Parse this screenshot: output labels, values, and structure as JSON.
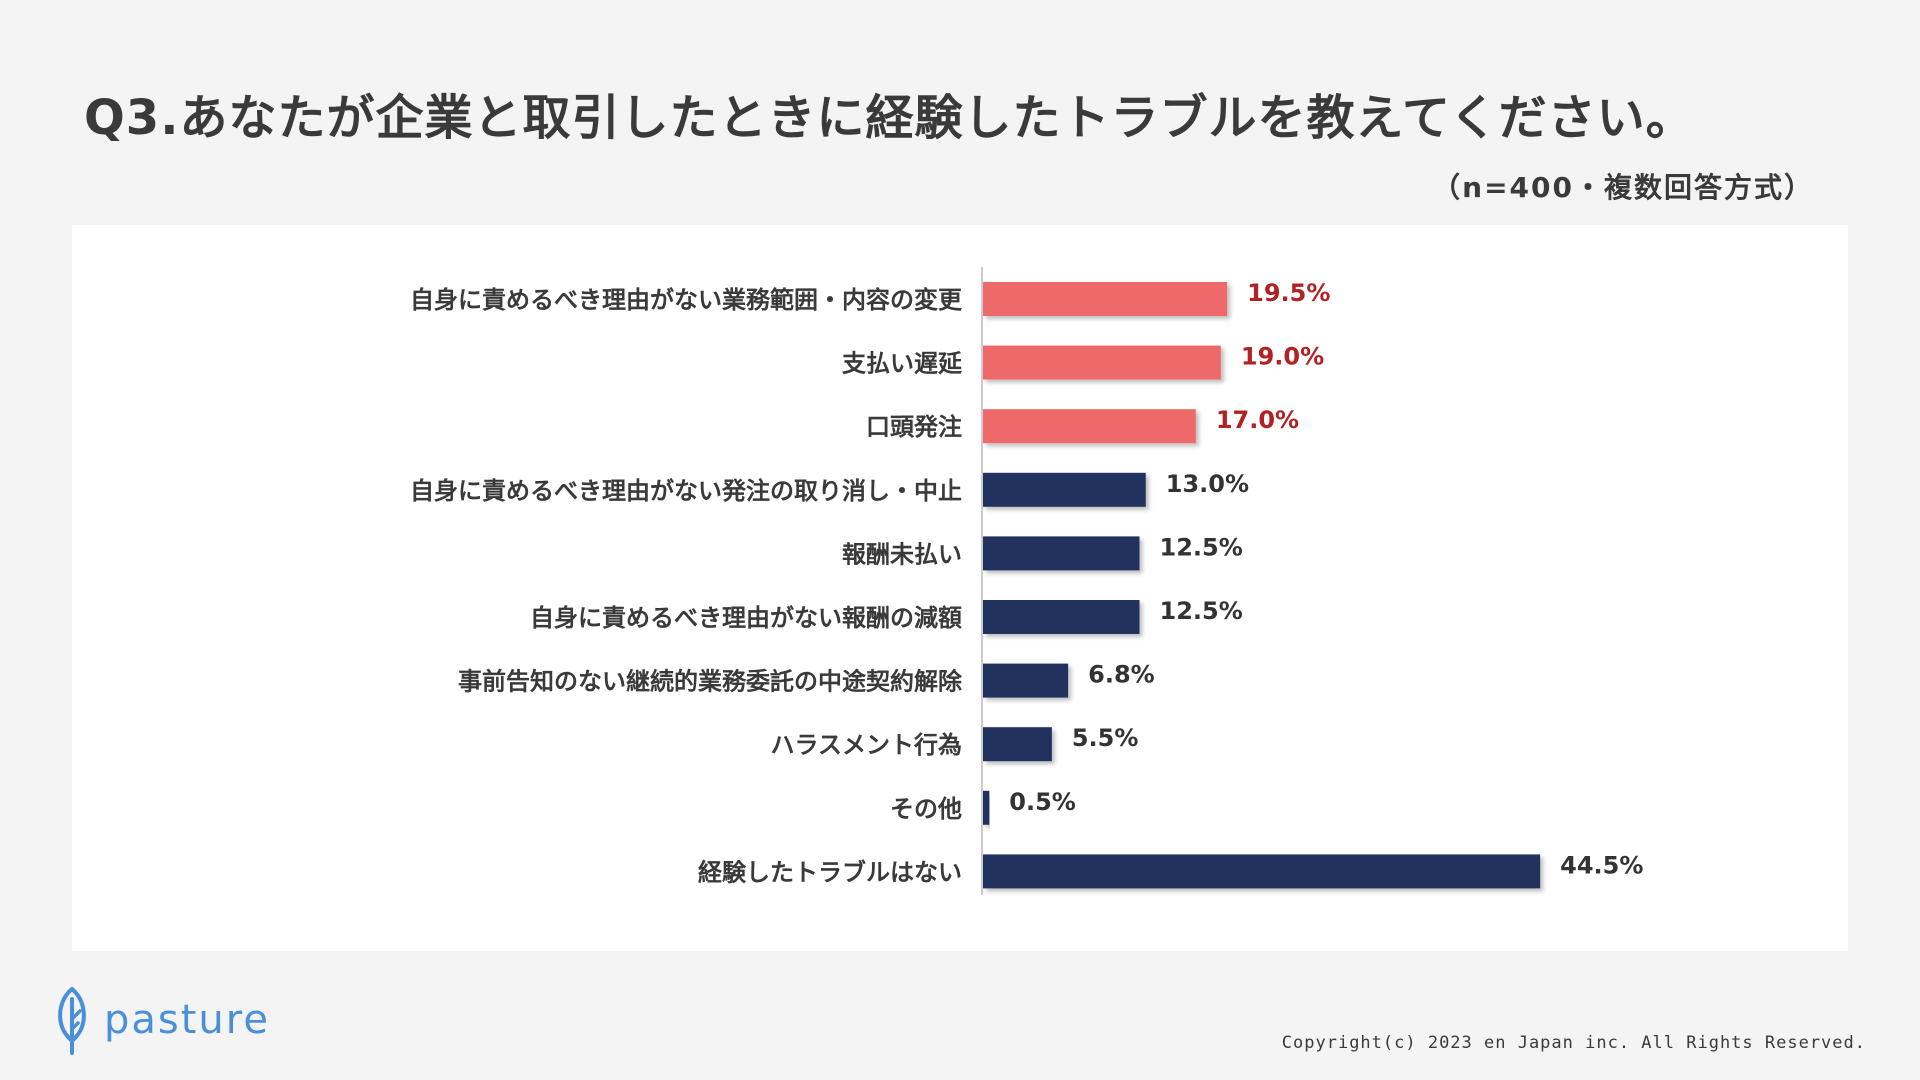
{
  "header": {
    "title": "Q3.あなたが企業と取引したときに経験したトラブルを教えてください。",
    "subtitle": "（n=400・複数回答方式）"
  },
  "colors": {
    "highlight_bar": "#ee6b6b",
    "highlight_text": "#b22222",
    "normal_bar": "#24335e",
    "normal_text": "#333333",
    "brand": "#4a90d9"
  },
  "chart_data": {
    "type": "bar",
    "orientation": "horizontal",
    "categories": [
      "自身に責めるべき理由がない業務範囲・内容の変更",
      "支払い遅延",
      "口頭発注",
      "自身に責めるべき理由がない発注の取り消し・中止",
      "報酬未払い",
      "自身に責めるべき理由がない報酬の減額",
      "事前告知のない継続的業務委託の中途契約解除",
      "ハラスメント行為",
      "その他",
      "経験したトラブルはない"
    ],
    "values": [
      19.5,
      19.0,
      17.0,
      13.0,
      12.5,
      12.5,
      6.8,
      5.5,
      0.5,
      44.5
    ],
    "value_labels": [
      "19.5%",
      "19.0%",
      "17.0%",
      "13.0%",
      "12.5%",
      "12.5%",
      "6.8%",
      "5.5%",
      "0.5%",
      "44.5%"
    ],
    "highlighted": [
      true,
      true,
      true,
      false,
      false,
      false,
      false,
      false,
      false,
      false
    ],
    "xlim": [
      0,
      50
    ],
    "grid": false,
    "legend": "none"
  },
  "footer": {
    "logo_text": "pasture",
    "logo_icon": "leaf-icon",
    "copyright": "Copyright(c) 2023 en Japan inc. All Rights Reserved."
  }
}
